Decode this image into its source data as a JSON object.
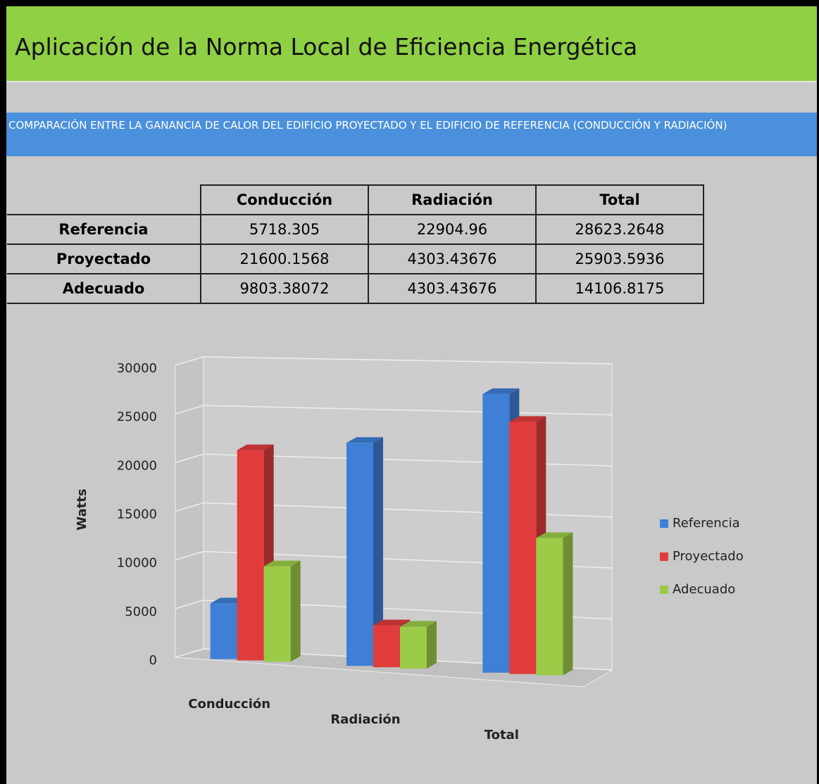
{
  "header": {
    "title": "Aplicación de la Norma Local de Eficiencia Energética"
  },
  "banner": {
    "text": "COMPARACIÓN ENTRE LA GANANCIA DE CALOR DEL EDIFICIO PROYECTADO Y EL EDIFICIO DE REFERENCIA (CONDUCCIÓN Y RADIACIÓN)"
  },
  "table": {
    "columns": [
      "Conducción",
      "Radiación",
      "Total"
    ],
    "rows": [
      {
        "label": "Referencia",
        "values": [
          5718.305,
          22904.96,
          28623.2648
        ]
      },
      {
        "label": "Proyectado",
        "values": [
          21600.1568,
          4303.43676,
          25903.5936
        ]
      },
      {
        "label": "Adecuado",
        "values": [
          9803.38072,
          4303.43676,
          14106.8175
        ]
      }
    ]
  },
  "chart_data": {
    "type": "bar",
    "ylabel": "Watts",
    "categories": [
      "Conducción",
      "Radiación",
      "Total"
    ],
    "series": [
      {
        "name": "Referencia",
        "color": "#3f7fd6",
        "values": [
          5718.305,
          22904.96,
          28623.2648
        ]
      },
      {
        "name": "Proyectado",
        "color": "#e03c3c",
        "values": [
          21600.1568,
          4303.43676,
          25903.5936
        ]
      },
      {
        "name": "Adecuado",
        "color": "#9ccb48",
        "values": [
          9803.38072,
          4303.43676,
          14106.8175
        ]
      }
    ],
    "ylim": [
      0,
      30000
    ],
    "yticks": [
      0,
      5000,
      10000,
      15000,
      20000,
      25000,
      30000
    ],
    "grid": true,
    "legend": "right"
  }
}
